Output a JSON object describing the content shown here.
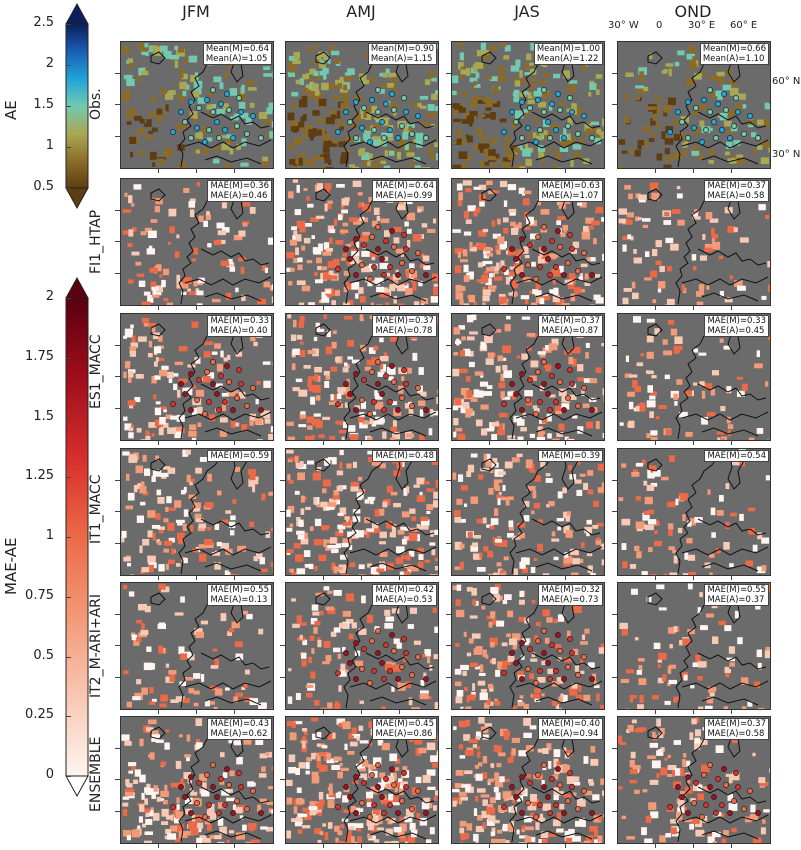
{
  "column_titles": [
    "JFM",
    "AMJ",
    "JAS",
    "OND"
  ],
  "row_titles": [
    "Obs.",
    "FI1_HTAP",
    "ES1_MACC",
    "IT1_MACC",
    "IT2_M-ARI+ARI",
    "ENSEMBLE"
  ],
  "longitude_labels": [
    "30° W",
    "0",
    "30° E",
    "60° E"
  ],
  "latitude_labels": [
    "60° N",
    "30° N"
  ],
  "colorbar_ae": {
    "title": "AE",
    "ticks": [
      "2.5",
      "2",
      "1.5",
      "1",
      "0.5"
    ],
    "colors": [
      "#0b1f5c",
      "#1a5fb4",
      "#21a6d8",
      "#73c9b0",
      "#a8a852",
      "#8a6b2a",
      "#5e3d12"
    ]
  },
  "colorbar_mae": {
    "title": "MAE-AE",
    "ticks": [
      "2",
      "1.75",
      "1.5",
      "1.25",
      "1",
      "0.75",
      "0.5",
      "0.25",
      "0"
    ],
    "colors": [
      "#5a0010",
      "#a10e1c",
      "#d8302c",
      "#ec6a48",
      "#f39a78",
      "#f8c9b5",
      "#fff4ef"
    ]
  },
  "panels": [
    [
      {
        "lines": [
          "Mean(M)=0.64",
          "Mean(A)=1.05"
        ],
        "style": "obs",
        "coverage": 0.55
      },
      {
        "lines": [
          "Mean(M)=0.90",
          "Mean(A)=1.15"
        ],
        "style": "obs",
        "coverage": 0.85
      },
      {
        "lines": [
          "Mean(M)=1.00",
          "Mean(A)=1.22"
        ],
        "style": "obs",
        "coverage": 0.8
      },
      {
        "lines": [
          "Mean(M)=0.66",
          "Mean(A)=1.10"
        ],
        "style": "obs",
        "coverage": 0.45
      }
    ],
    [
      {
        "lines": [
          "MAE(M)=0.36",
          "MAE(A)=0.46"
        ],
        "style": "mae",
        "coverage": 0.35
      },
      {
        "lines": [
          "MAE(M)=0.64",
          "MAE(A)=0.99"
        ],
        "style": "mae",
        "coverage": 0.75
      },
      {
        "lines": [
          "MAE(M)=0.63",
          "MAE(A)=1.07"
        ],
        "style": "mae",
        "coverage": 0.75
      },
      {
        "lines": [
          "MAE(M)=0.37",
          "MAE(A)=0.58"
        ],
        "style": "mae",
        "coverage": 0.3
      }
    ],
    [
      {
        "lines": [
          "MAE(M)=0.33",
          "MAE(A)=0.40"
        ],
        "style": "mae",
        "coverage": 0.45
      },
      {
        "lines": [
          "MAE(M)=0.37",
          "MAE(A)=0.78"
        ],
        "style": "mae",
        "coverage": 0.6
      },
      {
        "lines": [
          "MAE(M)=0.37",
          "MAE(A)=0.87"
        ],
        "style": "mae",
        "coverage": 0.6
      },
      {
        "lines": [
          "MAE(M)=0.33",
          "MAE(A)=0.45"
        ],
        "style": "mae",
        "coverage": 0.3
      }
    ],
    [
      {
        "lines": [
          "MAE(M)=0.59"
        ],
        "style": "mae",
        "coverage": 0.55
      },
      {
        "lines": [
          "MAE(M)=0.48"
        ],
        "style": "mae",
        "coverage": 0.75
      },
      {
        "lines": [
          "MAE(M)=0.39"
        ],
        "style": "mae",
        "coverage": 0.55
      },
      {
        "lines": [
          "MAE(M)=0.54"
        ],
        "style": "mae",
        "coverage": 0.3
      }
    ],
    [
      {
        "lines": [
          "MAE(M)=0.55",
          "MAE(A)=0.13"
        ],
        "style": "mae",
        "coverage": 0.3
      },
      {
        "lines": [
          "MAE(M)=0.42",
          "MAE(A)=0.53"
        ],
        "style": "mae",
        "coverage": 0.4
      },
      {
        "lines": [
          "MAE(M)=0.32",
          "MAE(A)=0.73"
        ],
        "style": "mae",
        "coverage": 0.5
      },
      {
        "lines": [
          "MAE(M)=0.55",
          "MAE(A)=0.37"
        ],
        "style": "mae",
        "coverage": 0.3
      }
    ],
    [
      {
        "lines": [
          "MAE(M)=0.43",
          "MAE(A)=0.62"
        ],
        "style": "mae",
        "coverage": 0.6
      },
      {
        "lines": [
          "MAE(M)=0.45",
          "MAE(A)=0.86"
        ],
        "style": "mae",
        "coverage": 0.8
      },
      {
        "lines": [
          "MAE(M)=0.40",
          "MAE(A)=0.94"
        ],
        "style": "mae",
        "coverage": 0.8
      },
      {
        "lines": [
          "MAE(M)=0.37",
          "MAE(A)=0.58"
        ],
        "style": "mae",
        "coverage": 0.4
      }
    ]
  ]
}
